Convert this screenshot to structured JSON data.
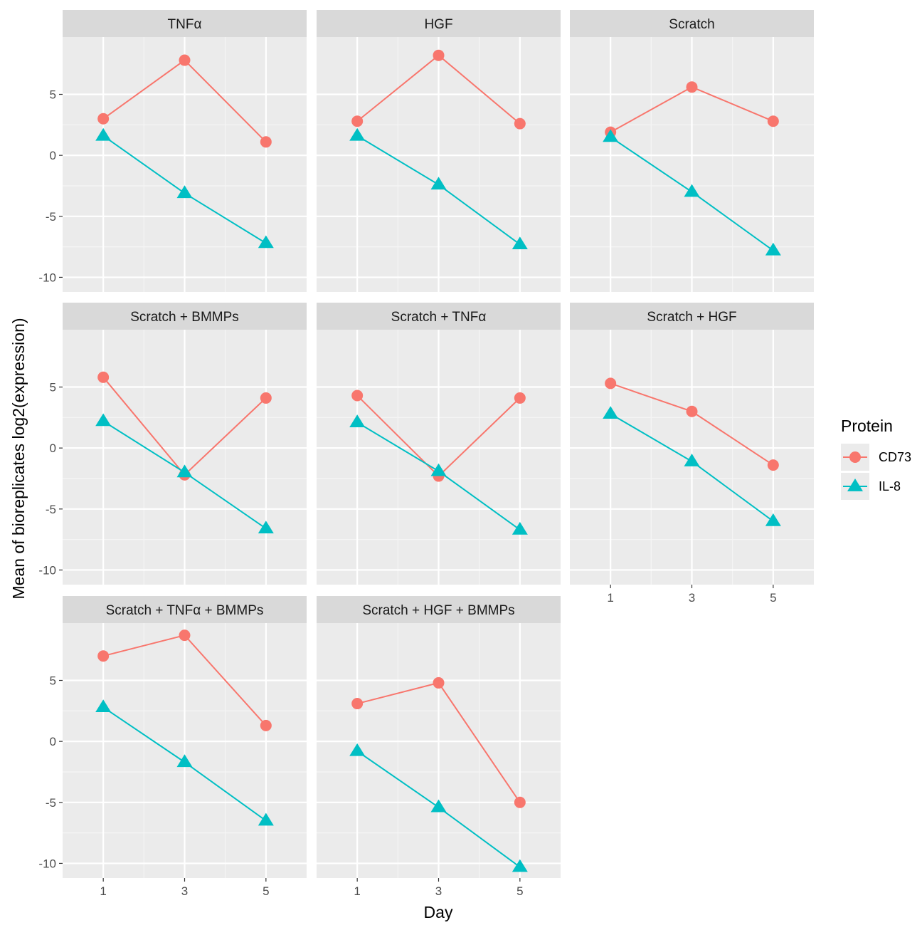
{
  "chart_data": {
    "type": "line",
    "layout": "facet_wrap",
    "xlabel": "Day",
    "ylabel": "Mean of bioreplicates log2(expression)",
    "x_ticks": [
      1,
      3,
      5
    ],
    "y_ticks": [
      5,
      0,
      -5,
      -10
    ],
    "y_tick_labels": [
      "5",
      "0",
      "-5",
      "-10"
    ],
    "xlim": [
      0,
      6.0
    ],
    "ylim": [
      -11.2,
      9.7
    ],
    "legend": {
      "title": "Protein",
      "position": "right",
      "entries": [
        {
          "name": "CD73",
          "color": "#F8766D",
          "shape": "circle"
        },
        {
          "name": "IL-8",
          "color": "#00BFC4",
          "shape": "triangle"
        }
      ]
    },
    "panels": [
      {
        "title": "TNFα",
        "x": [
          1,
          3,
          5
        ],
        "series": [
          {
            "name": "CD73",
            "values": [
              3.0,
              7.8,
              1.1
            ]
          },
          {
            "name": "IL-8",
            "values": [
              1.6,
              -3.1,
              -7.2
            ]
          }
        ]
      },
      {
        "title": "HGF",
        "x": [
          1,
          3,
          5
        ],
        "series": [
          {
            "name": "CD73",
            "values": [
              2.8,
              8.2,
              2.6
            ]
          },
          {
            "name": "IL-8",
            "values": [
              1.6,
              -2.4,
              -7.3
            ]
          }
        ]
      },
      {
        "title": "Scratch",
        "x": [
          1,
          3,
          5
        ],
        "series": [
          {
            "name": "CD73",
            "values": [
              1.9,
              5.6,
              2.8
            ]
          },
          {
            "name": "IL-8",
            "values": [
              1.5,
              -3.0,
              -7.8
            ]
          }
        ]
      },
      {
        "title": "Scratch + BMMPs",
        "x": [
          1,
          3,
          5
        ],
        "series": [
          {
            "name": "CD73",
            "values": [
              5.8,
              -2.2,
              4.1
            ]
          },
          {
            "name": "IL-8",
            "values": [
              2.2,
              -2.0,
              -6.6
            ]
          }
        ]
      },
      {
        "title": "Scratch + TNFα",
        "x": [
          1,
          3,
          5
        ],
        "series": [
          {
            "name": "CD73",
            "values": [
              4.3,
              -2.3,
              4.1
            ]
          },
          {
            "name": "IL-8",
            "values": [
              2.1,
              -1.9,
              -6.7
            ]
          }
        ]
      },
      {
        "title": "Scratch + HGF",
        "x": [
          1,
          3,
          5
        ],
        "series": [
          {
            "name": "CD73",
            "values": [
              5.3,
              3.0,
              -1.4
            ]
          },
          {
            "name": "IL-8",
            "values": [
              2.8,
              -1.1,
              -6.0
            ]
          }
        ]
      },
      {
        "title": "Scratch + TNFα + BMMPs",
        "x": [
          1,
          3,
          5
        ],
        "series": [
          {
            "name": "CD73",
            "values": [
              7.0,
              8.7,
              1.3
            ]
          },
          {
            "name": "IL-8",
            "values": [
              2.8,
              -1.7,
              -6.5
            ]
          }
        ]
      },
      {
        "title": "Scratch + HGF + BMMPs",
        "x": [
          1,
          3,
          5
        ],
        "series": [
          {
            "name": "CD73",
            "values": [
              3.1,
              4.8,
              -5.0
            ]
          },
          {
            "name": "IL-8",
            "values": [
              -0.8,
              -5.4,
              -10.3
            ]
          }
        ]
      }
    ]
  }
}
